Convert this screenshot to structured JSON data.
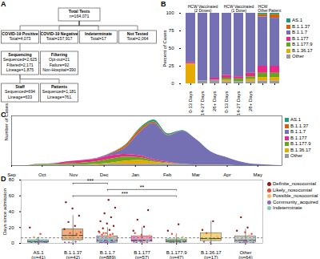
{
  "diagram": {
    "panel": "A",
    "nodes": [
      {
        "lines": [
          "Total Tests",
          "n=164,071"
        ]
      },
      {
        "lines": [
          "COVID-19 Positive",
          "Total=4,073"
        ]
      },
      {
        "lines": [
          "COVID-19 Negative",
          "Total=157,917"
        ]
      },
      {
        "lines": [
          "Indeterminate",
          "Total=17"
        ]
      },
      {
        "lines": [
          "Not Tested",
          "Total=2,064"
        ]
      },
      {
        "lines": [
          "Sequencing",
          "Sequenced=2,625",
          "Filtered=2,171",
          "Lineage=1,875"
        ]
      },
      {
        "lines": [
          "Filtering",
          "Opt-out=21",
          "Failure=92",
          "Non-Hospital=390"
        ]
      },
      {
        "lines": [
          "Staff",
          "Sequenced=694",
          "Lineage=633"
        ]
      },
      {
        "lines": [
          "Patients",
          "Sequenced=1,181",
          "Lineage=761"
        ]
      }
    ],
    "edges": [
      [
        0,
        1
      ],
      [
        0,
        2
      ],
      [
        0,
        3
      ],
      [
        0,
        4
      ],
      [
        1,
        5
      ],
      [
        5,
        6
      ],
      [
        5,
        7
      ],
      [
        5,
        8
      ]
    ]
  },
  "chart_data": [
    {
      "panel": "B",
      "type": "bar",
      "stacked": true,
      "legend": "right",
      "ylabel": "Percent of Cases",
      "categories": [
        "0-13 Days",
        "14-27 Days",
        "28+ Days",
        "0-13 Days",
        "14-27 Days",
        "28+ Days",
        null,
        null
      ],
      "groups": [
        "HCW Vaccinated (2 Doses)",
        "HCW Vaccinated (2 Doses)",
        "HCW Vaccinated (2 Doses)",
        "HCW Vaccinated (1 Dose)",
        "HCW Vaccinated (1 Dose)",
        "HCW Vaccinated (1 Dose)",
        "HCW Other",
        "Patient"
      ],
      "ylim": [
        0,
        100
      ],
      "yticks": [
        0,
        25,
        50,
        75,
        100
      ],
      "series": [
        {
          "name": "AS.1",
          "color": "#1b9e77",
          "values": [
            0,
            0,
            0,
            0,
            0,
            0,
            2,
            2
          ]
        },
        {
          "name": "B.1.1.37",
          "color": "#d95f02",
          "values": [
            0,
            0,
            0,
            0,
            0,
            0,
            3,
            5
          ]
        },
        {
          "name": "B.1.1.7",
          "color": "#7570b3",
          "values": [
            70,
            96,
            92,
            88,
            90,
            85,
            70,
            68
          ]
        },
        {
          "name": "B.1.177",
          "color": "#e7298a",
          "values": [
            2,
            0,
            3,
            4,
            3,
            5,
            10,
            10
          ]
        },
        {
          "name": "B.1.177.9",
          "color": "#66a61e",
          "values": [
            0,
            0,
            0,
            3,
            4,
            4,
            6,
            6
          ]
        },
        {
          "name": "B.1.36.17",
          "color": "#e6ab02",
          "values": [
            28,
            0,
            0,
            2,
            0,
            3,
            5,
            5
          ]
        },
        {
          "name": "Other",
          "color": "#999999",
          "values": [
            0,
            4,
            5,
            3,
            3,
            3,
            4,
            4
          ]
        }
      ]
    },
    {
      "panel": "C",
      "type": "area",
      "stacked": true,
      "legend": "right",
      "tick_labels": "x",
      "ylabel": "Number of Cases",
      "x": [
        0,
        2,
        4,
        6,
        8,
        10,
        12,
        14,
        16,
        18,
        20,
        22,
        24,
        26,
        28,
        30,
        32,
        34,
        36,
        38
      ],
      "xlim": [
        0,
        38
      ],
      "xticks": [
        {
          "value": 0,
          "label": "Sep"
        },
        {
          "value": 4.3,
          "label": "Oct"
        },
        {
          "value": 8.7,
          "label": "Nov"
        },
        {
          "value": 13,
          "label": "Dec"
        },
        {
          "value": 17.4,
          "label": "Jan"
        },
        {
          "value": 21.9,
          "label": "Feb"
        },
        {
          "value": 25.9,
          "label": "Mar"
        },
        {
          "value": 30.3,
          "label": "Apr"
        },
        {
          "value": 34.6,
          "label": "May"
        }
      ],
      "ylim": [
        0,
        75
      ],
      "series": [
        {
          "name": "AS.1",
          "color": "#1b9e77",
          "values": [
            0,
            0,
            0,
            0,
            0,
            0,
            0,
            0,
            1,
            2,
            3,
            2,
            1,
            0,
            0,
            0,
            0,
            0,
            0,
            0
          ]
        },
        {
          "name": "B.1.1.37",
          "color": "#d95f02",
          "values": [
            0,
            0,
            0,
            0,
            0,
            0,
            0,
            1,
            3,
            4,
            2,
            1,
            0,
            0,
            0,
            0,
            0,
            0,
            0,
            0
          ]
        },
        {
          "name": "B.1.1.7",
          "color": "#7570b3",
          "values": [
            0,
            0,
            0,
            0,
            0,
            0,
            1,
            3,
            10,
            35,
            55,
            40,
            50,
            38,
            20,
            12,
            6,
            2,
            1,
            0
          ]
        },
        {
          "name": "B.1.177",
          "color": "#e7298a",
          "values": [
            0,
            0,
            0,
            1,
            3,
            4,
            4,
            5,
            4,
            3,
            2,
            1,
            0,
            0,
            0,
            0,
            0,
            0,
            0,
            0
          ]
        },
        {
          "name": "B.1.177.9",
          "color": "#66a61e",
          "values": [
            0,
            0,
            1,
            1,
            2,
            3,
            4,
            6,
            6,
            4,
            2,
            1,
            0,
            0,
            0,
            0,
            0,
            0,
            0,
            0
          ]
        },
        {
          "name": "B.1.36.17",
          "color": "#e6ab02",
          "values": [
            0,
            0,
            0,
            0,
            0,
            0,
            1,
            2,
            5,
            6,
            3,
            1,
            0,
            0,
            0,
            0,
            0,
            0,
            0,
            0
          ]
        },
        {
          "name": "Other",
          "color": "#999999",
          "values": [
            0,
            0,
            1,
            1,
            1,
            1,
            1,
            2,
            2,
            2,
            2,
            2,
            2,
            1,
            1,
            1,
            0,
            0,
            0,
            0
          ]
        }
      ]
    },
    {
      "panel": "D",
      "type": "box",
      "legend": "right",
      "ylabel": "Days since admission",
      "categories": [
        "AS.1\n(n=41)",
        "B.1.1.37\n(n=42)",
        "B.1.1.7\n(n=889)",
        "B.1.177\n(n=57)",
        "B.1.177.9\n(n=47)",
        "B.1.36.17\n(n=17)",
        "Other\n(n=64)"
      ],
      "colors": [
        "#1b9e77",
        "#d95f02",
        "#7570b3",
        "#e7298a",
        "#66a61e",
        "#e6ab02",
        "#999999"
      ],
      "ylim": [
        0,
        80
      ],
      "yticks": [
        0,
        20,
        40,
        60,
        80
      ],
      "reference_line": 7,
      "boxes": {
        "low": [
          0,
          0,
          0,
          0,
          0,
          1,
          0
        ],
        "q1": [
          1,
          4,
          1,
          2,
          1,
          3,
          1
        ],
        "median": [
          2,
          10,
          4,
          4,
          3,
          6,
          4
        ],
        "q3": [
          4,
          18,
          9,
          9,
          5,
          13,
          9
        ],
        "high": [
          8,
          35,
          20,
          20,
          12,
          28,
          18
        ]
      },
      "comparisons": [
        {
          "from": 1,
          "to": 2,
          "label": "***"
        },
        {
          "from": 2,
          "to": 4,
          "label": "**"
        },
        {
          "from": 1,
          "to": 4,
          "label": "***"
        }
      ],
      "series": [
        {
          "name": "Definite_nosocomial",
          "color": "#8b1a1a",
          "values": [
            [
              20
            ],
            [
              18,
              22,
              27,
              35,
              44,
              52
            ],
            [
              15,
              17,
              19,
              22,
              25,
              28,
              33,
              38,
              45,
              55
            ],
            [
              16,
              21,
              30,
              42
            ],
            [
              16,
              24
            ],
            [
              17,
              28
            ],
            [
              16,
              20,
              33
            ]
          ]
        },
        {
          "name": "Likely_nosocomial",
          "color": "#e34a33",
          "values": [
            [
              12
            ],
            [
              12,
              13,
              14
            ],
            [
              11,
              12,
              13,
              14,
              11,
              13
            ],
            [
              11,
              13
            ],
            [
              12
            ],
            [
              13
            ],
            [
              12,
              14
            ]
          ]
        },
        {
          "name": "Possible_nosocomial",
          "color": "#fdae61",
          "values": [
            [
              8
            ],
            [
              8,
              9,
              10
            ],
            [
              7,
              8,
              8,
              9,
              10,
              7,
              9
            ],
            [
              7,
              9,
              10
            ],
            [
              8,
              9
            ],
            [
              9
            ],
            [
              7,
              10
            ]
          ]
        },
        {
          "name": "Community_acquired",
          "color": "#8c6bb1",
          "values": [
            [
              0,
              1,
              1,
              2,
              0,
              1,
              2
            ],
            [
              0,
              1,
              2,
              1
            ],
            [
              0,
              0,
              1,
              1,
              1,
              2,
              2,
              0,
              1,
              2,
              1
            ],
            [
              0,
              1,
              1,
              2,
              2,
              0
            ],
            [
              0,
              1,
              1,
              2,
              0,
              1
            ],
            [
              1,
              2
            ],
            [
              0,
              1,
              2,
              1,
              0,
              2
            ]
          ]
        },
        {
          "name": "Indeterminate",
          "color": "#7fc7b8",
          "values": [
            [
              3,
              4,
              5
            ],
            [
              4,
              5,
              6
            ],
            [
              3,
              3,
              4,
              4,
              5,
              5,
              6,
              6,
              3,
              4
            ],
            [
              3,
              4,
              5,
              6,
              4
            ],
            [
              3,
              4,
              5,
              5
            ],
            [
              4,
              6
            ],
            [
              3,
              4,
              6,
              5
            ]
          ]
        }
      ]
    }
  ]
}
